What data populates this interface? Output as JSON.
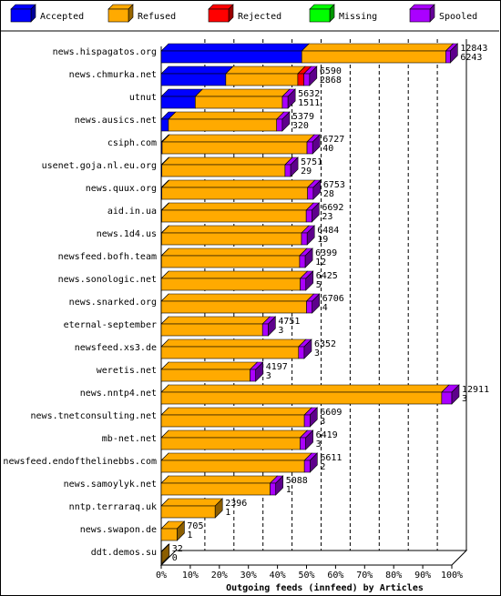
{
  "chart_data": {
    "type": "bar",
    "orientation": "horizontal",
    "stacked": true,
    "percent_scale": true,
    "xlabel": "Outgoing feeds (innfeed) by Articles",
    "ticks": [
      "0%",
      "10%",
      "20%",
      "30%",
      "40%",
      "50%",
      "60%",
      "70%",
      "80%",
      "90%",
      "100%"
    ],
    "legend": [
      {
        "name": "Accepted",
        "color": "#0000ff"
      },
      {
        "name": "Refused",
        "color": "#ffaa00"
      },
      {
        "name": "Rejected",
        "color": "#ff0000"
      },
      {
        "name": "Missing",
        "color": "#00ff00"
      },
      {
        "name": "Spooled",
        "color": "#aa00ff"
      }
    ],
    "colors": {
      "Accepted": "#0000ff",
      "Refused": "#ffaa00",
      "Rejected": "#ff0000",
      "Missing": "#00ff00",
      "Spooled": "#aa00ff"
    },
    "rows": [
      {
        "name": "news.hispagatos.org",
        "total": 12843,
        "accepted": 6243,
        "refused": 6400,
        "rejected": 0,
        "missing": 0,
        "spooled": 200,
        "label_top": "12843",
        "label_bottom": "6243"
      },
      {
        "name": "news.chmurka.net",
        "total": 6590,
        "accepted": 2868,
        "refused": 3200,
        "rejected": 272,
        "missing": 0,
        "spooled": 250,
        "label_top": "6590",
        "label_bottom": "2868"
      },
      {
        "name": "utnut",
        "total": 5632,
        "accepted": 1511,
        "refused": 3871,
        "rejected": 0,
        "missing": 0,
        "spooled": 250,
        "label_top": "5632",
        "label_bottom": "1511"
      },
      {
        "name": "news.ausics.net",
        "total": 5379,
        "accepted": 320,
        "refused": 4809,
        "rejected": 0,
        "missing": 0,
        "spooled": 250,
        "label_top": "5379",
        "label_bottom": "320"
      },
      {
        "name": "csiph.com",
        "total": 6727,
        "accepted": 40,
        "refused": 6437,
        "rejected": 0,
        "missing": 0,
        "spooled": 250,
        "label_top": "6727",
        "label_bottom": "40"
      },
      {
        "name": "usenet.goja.nl.eu.org",
        "total": 5751,
        "accepted": 29,
        "refused": 5472,
        "rejected": 0,
        "missing": 0,
        "spooled": 250,
        "label_top": "5751",
        "label_bottom": "29"
      },
      {
        "name": "news.quux.org",
        "total": 6753,
        "accepted": 28,
        "refused": 6475,
        "rejected": 0,
        "missing": 0,
        "spooled": 250,
        "label_top": "6753",
        "label_bottom": "28"
      },
      {
        "name": "aid.in.ua",
        "total": 6692,
        "accepted": 23,
        "refused": 6419,
        "rejected": 0,
        "missing": 0,
        "spooled": 250,
        "label_top": "6692",
        "label_bottom": "23"
      },
      {
        "name": "news.1d4.us",
        "total": 6484,
        "accepted": 19,
        "refused": 6215,
        "rejected": 0,
        "missing": 0,
        "spooled": 250,
        "label_top": "6484",
        "label_bottom": "19"
      },
      {
        "name": "newsfeed.bofh.team",
        "total": 6399,
        "accepted": 12,
        "refused": 6137,
        "rejected": 0,
        "missing": 0,
        "spooled": 250,
        "label_top": "6399",
        "label_bottom": "12"
      },
      {
        "name": "news.sonologic.net",
        "total": 6425,
        "accepted": 5,
        "refused": 6170,
        "rejected": 0,
        "missing": 0,
        "spooled": 250,
        "label_top": "6425",
        "label_bottom": "5"
      },
      {
        "name": "news.snarked.org",
        "total": 6706,
        "accepted": 4,
        "refused": 6452,
        "rejected": 0,
        "missing": 0,
        "spooled": 250,
        "label_top": "6706",
        "label_bottom": "4"
      },
      {
        "name": "eternal-september",
        "total": 4751,
        "accepted": 3,
        "refused": 4498,
        "rejected": 0,
        "missing": 0,
        "spooled": 250,
        "label_top": "4751",
        "label_bottom": "3"
      },
      {
        "name": "newsfeed.xs3.de",
        "total": 6352,
        "accepted": 3,
        "refused": 6099,
        "rejected": 0,
        "missing": 0,
        "spooled": 250,
        "label_top": "6352",
        "label_bottom": "3"
      },
      {
        "name": "weretis.net",
        "total": 4197,
        "accepted": 3,
        "refused": 3944,
        "rejected": 0,
        "missing": 0,
        "spooled": 250,
        "label_top": "4197",
        "label_bottom": "3"
      },
      {
        "name": "news.nntp4.net",
        "total": 12911,
        "accepted": 3,
        "refused": 12458,
        "rejected": 0,
        "missing": 0,
        "spooled": 450,
        "label_top": "12911",
        "label_bottom": "3"
      },
      {
        "name": "news.tnetconsulting.net",
        "total": 6609,
        "accepted": 3,
        "refused": 6356,
        "rejected": 0,
        "missing": 0,
        "spooled": 250,
        "label_top": "6609",
        "label_bottom": "3"
      },
      {
        "name": "mb-net.net",
        "total": 6419,
        "accepted": 3,
        "refused": 6166,
        "rejected": 0,
        "missing": 0,
        "spooled": 250,
        "label_top": "6419",
        "label_bottom": "3"
      },
      {
        "name": "newsfeed.endofthelinebbs.com",
        "total": 6611,
        "accepted": 2,
        "refused": 6359,
        "rejected": 0,
        "missing": 0,
        "spooled": 250,
        "label_top": "6611",
        "label_bottom": "2"
      },
      {
        "name": "news.samoylyk.net",
        "total": 5088,
        "accepted": 1,
        "refused": 4837,
        "rejected": 0,
        "missing": 0,
        "spooled": 250,
        "label_top": "5088",
        "label_bottom": "1"
      },
      {
        "name": "nntp.terraraq.uk",
        "total": 2396,
        "accepted": 1,
        "refused": 2395,
        "rejected": 0,
        "missing": 0,
        "spooled": 0,
        "label_top": "2396",
        "label_bottom": "1"
      },
      {
        "name": "news.swapon.de",
        "total": 705,
        "accepted": 1,
        "refused": 704,
        "rejected": 0,
        "missing": 0,
        "spooled": 0,
        "label_top": "705",
        "label_bottom": "1"
      },
      {
        "name": "ddt.demos.su",
        "total": 32,
        "accepted": 0,
        "refused": 32,
        "rejected": 0,
        "missing": 0,
        "spooled": 0,
        "label_top": "32",
        "label_bottom": "0"
      }
    ]
  }
}
